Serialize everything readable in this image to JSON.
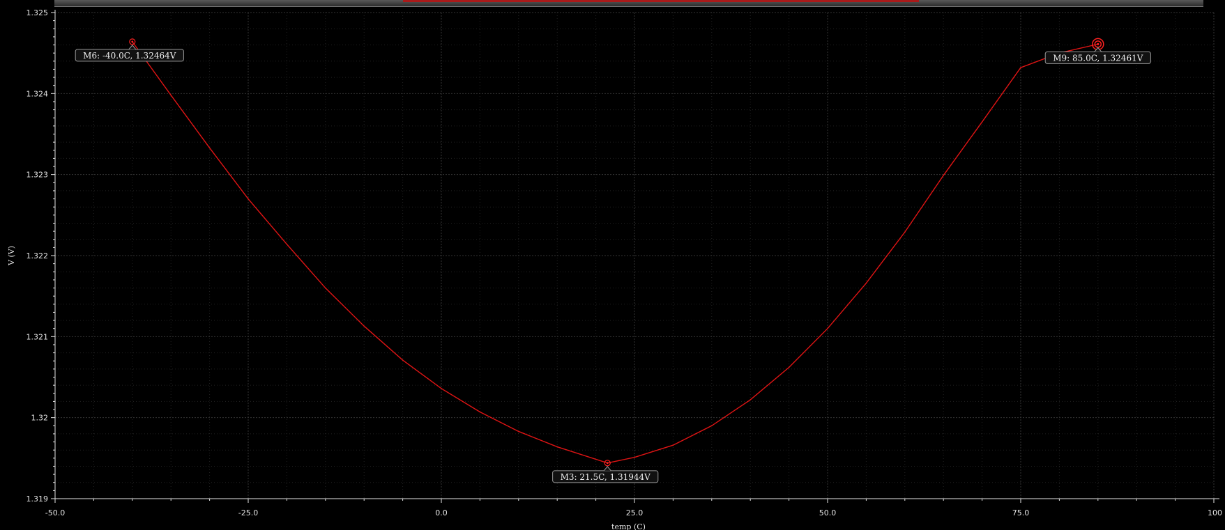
{
  "chart_data": {
    "type": "line",
    "xlabel": "temp (C)",
    "ylabel": "V (V)",
    "xlim": [
      -50,
      100
    ],
    "ylim": [
      1.319,
      1.325
    ],
    "x_ticks": [
      -50,
      -25,
      0,
      25,
      50,
      75,
      100
    ],
    "x_tick_labels": [
      "-50.0",
      "-25.0",
      "0.0",
      "25.0",
      "50.0",
      "75.0",
      "100"
    ],
    "y_ticks": [
      1.319,
      1.32,
      1.321,
      1.322,
      1.323,
      1.324,
      1.325
    ],
    "y_tick_labels": [
      "1.319",
      "1.32",
      "1.321",
      "1.322",
      "1.323",
      "1.324",
      "1.325"
    ],
    "grid": true,
    "series": [
      {
        "color": "#e01414",
        "x": [
          -40,
          -35,
          -30,
          -25,
          -20,
          -15,
          -10,
          -5,
          0,
          5,
          10,
          15,
          21.5,
          25,
          30,
          35,
          40,
          45,
          50,
          55,
          60,
          65,
          70,
          75,
          80,
          85
        ],
        "y": [
          1.32464,
          1.32398,
          1.32333,
          1.3227,
          1.32214,
          1.3216,
          1.32113,
          1.32071,
          1.32036,
          1.32007,
          1.31983,
          1.31964,
          1.31944,
          1.31951,
          1.31966,
          1.3199,
          1.32022,
          1.32062,
          1.3211,
          1.32166,
          1.32229,
          1.32299,
          1.32365,
          1.32432,
          1.3245,
          1.32461
        ]
      }
    ],
    "markers": [
      {
        "id": "M6",
        "x": -40.0,
        "y": 1.32464,
        "label": "M6: -40.0C, 1.32464V",
        "style": "dot"
      },
      {
        "id": "M3",
        "x": 21.5,
        "y": 1.31944,
        "label": "M3: 21.5C, 1.31944V",
        "style": "dot"
      },
      {
        "id": "M9",
        "x": 85.0,
        "y": 1.32461,
        "label": "M9: 85.0C, 1.32461V",
        "style": "ring"
      }
    ],
    "colors": {
      "background": "#000000",
      "axis": "#e6e6e6",
      "grid": "#3a3a3a",
      "label_box_fill": "#111111",
      "label_box_stroke": "#9a9a9a",
      "marker": "#ff2020"
    }
  }
}
